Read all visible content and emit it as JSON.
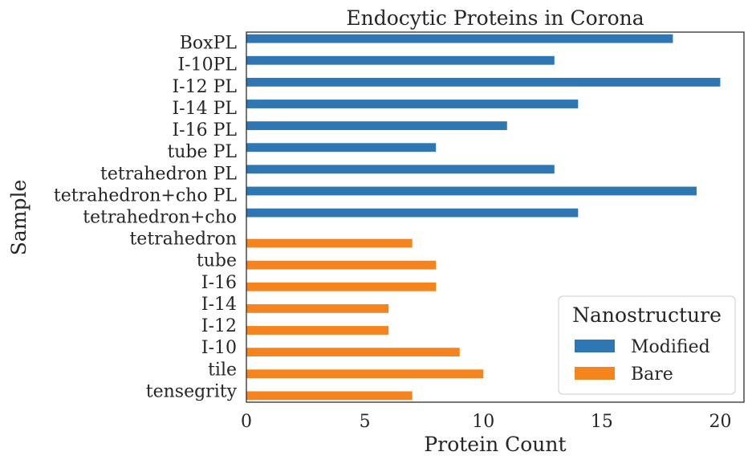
{
  "chart_data": {
    "type": "bar",
    "orientation": "horizontal",
    "title": "Endocytic Proteins in Corona",
    "xlabel": "Protein Count",
    "ylabel": "Sample",
    "xlim": [
      0,
      21
    ],
    "xticks": [
      0,
      5,
      10,
      15,
      20
    ],
    "grid": false,
    "legend": {
      "title": "Nanostructure",
      "placement": "lower-right",
      "entries": [
        {
          "name": "Modified",
          "color": "#2e77b2"
        },
        {
          "name": "Bare",
          "color": "#f5841f"
        }
      ]
    },
    "categories": [
      "BoxPL",
      "I-10PL",
      "I-12 PL",
      "I-14 PL",
      "I-16 PL",
      "tube PL",
      "tetrahedron PL",
      "tetrahedron+cho PL",
      "tetrahedron+cho",
      "tetrahedron",
      "tube",
      "I-16",
      "I-14",
      "I-12",
      "I-10",
      "tile",
      "tensegrity"
    ],
    "series": [
      {
        "name": "Modified",
        "color": "#2e77b2",
        "values": [
          18,
          13,
          20,
          14,
          11,
          8,
          13,
          19,
          14,
          null,
          null,
          null,
          null,
          null,
          null,
          null,
          null
        ]
      },
      {
        "name": "Bare",
        "color": "#f5841f",
        "values": [
          null,
          null,
          null,
          null,
          null,
          null,
          null,
          null,
          null,
          7,
          8,
          8,
          6,
          6,
          9,
          10,
          7
        ]
      }
    ]
  }
}
